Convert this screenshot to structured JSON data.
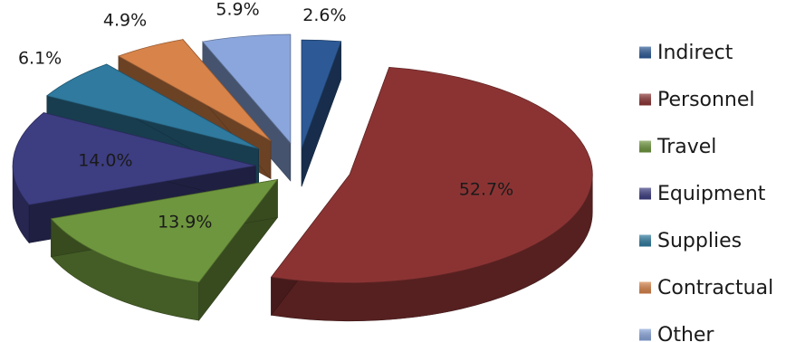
{
  "chart_data": {
    "type": "pie",
    "title": "",
    "slices": [
      {
        "label": "Indirect",
        "value": 2.6,
        "display": "2.6%",
        "color": "#2d5a96"
      },
      {
        "label": "Personnel",
        "value": 52.7,
        "display": "52.7%",
        "color": "#8b3333"
      },
      {
        "label": "Travel",
        "value": 13.9,
        "display": "13.9%",
        "color": "#6e963e"
      },
      {
        "label": "Equipment",
        "value": 14.0,
        "display": "14.0%",
        "color": "#3d3d82"
      },
      {
        "label": "Supplies",
        "value": 6.1,
        "display": "6.1%",
        "color": "#2f7a9e"
      },
      {
        "label": "Contractual",
        "value": 4.9,
        "display": "4.9%",
        "color": "#d7834a"
      },
      {
        "label": "Other",
        "value": 5.9,
        "display": "5.9%",
        "color": "#8aa6dc"
      }
    ],
    "legend_position": "right",
    "style": "3d-exploded"
  }
}
